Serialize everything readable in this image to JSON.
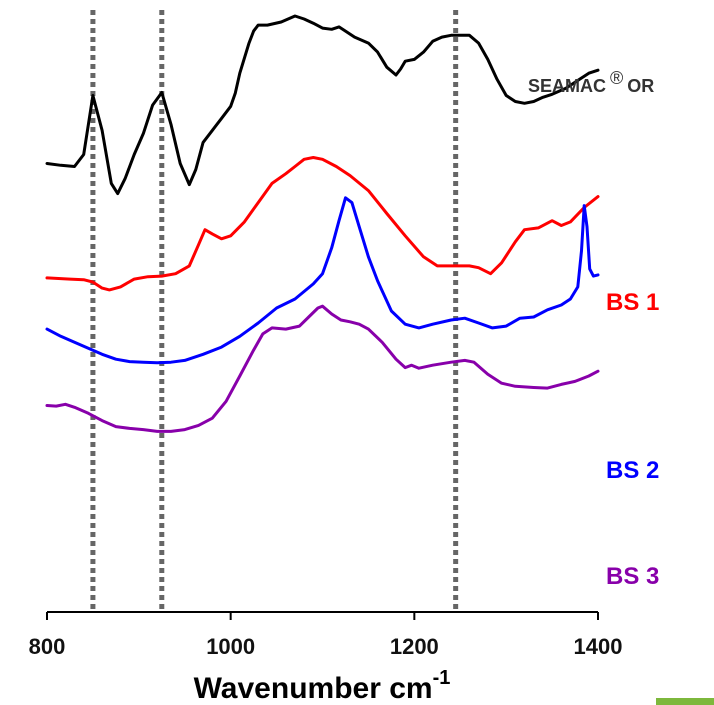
{
  "chart_data": {
    "type": "line",
    "title": "",
    "xlabel": "Wavenumber cm",
    "xlabel_superscript": "-1",
    "ylabel": "",
    "xlim": [
      800,
      1400
    ],
    "xticks": [
      800,
      1000,
      1200,
      1400
    ],
    "stacked_offsets": true,
    "reference_lines": {
      "style": "dotted",
      "color": "#666666",
      "x": [
        850,
        925,
        1245
      ]
    },
    "series": [
      {
        "name": "SEAMAC",
        "name_superscript": "®",
        "name_suffix": "OR",
        "color": "#000000",
        "label_color": "#333333",
        "points": [
          [
            800,
            0.745
          ],
          [
            815,
            0.742
          ],
          [
            830,
            0.74
          ],
          [
            840,
            0.76
          ],
          [
            850,
            0.858
          ],
          [
            860,
            0.8
          ],
          [
            870,
            0.712
          ],
          [
            877,
            0.695
          ],
          [
            885,
            0.72
          ],
          [
            895,
            0.76
          ],
          [
            905,
            0.795
          ],
          [
            915,
            0.842
          ],
          [
            925,
            0.863
          ],
          [
            935,
            0.81
          ],
          [
            945,
            0.745
          ],
          [
            955,
            0.71
          ],
          [
            962,
            0.735
          ],
          [
            970,
            0.78
          ],
          [
            980,
            0.8
          ],
          [
            990,
            0.82
          ],
          [
            1000,
            0.84
          ],
          [
            1005,
            0.862
          ],
          [
            1010,
            0.895
          ],
          [
            1020,
            0.945
          ],
          [
            1025,
            0.965
          ],
          [
            1030,
            0.975
          ],
          [
            1040,
            0.975
          ],
          [
            1055,
            0.98
          ],
          [
            1070,
            0.99
          ],
          [
            1080,
            0.985
          ],
          [
            1090,
            0.978
          ],
          [
            1100,
            0.97
          ],
          [
            1110,
            0.968
          ],
          [
            1118,
            0.972
          ],
          [
            1125,
            0.965
          ],
          [
            1135,
            0.955
          ],
          [
            1150,
            0.945
          ],
          [
            1160,
            0.93
          ],
          [
            1170,
            0.905
          ],
          [
            1180,
            0.892
          ],
          [
            1185,
            0.902
          ],
          [
            1190,
            0.915
          ],
          [
            1200,
            0.918
          ],
          [
            1210,
            0.93
          ],
          [
            1220,
            0.948
          ],
          [
            1230,
            0.955
          ],
          [
            1240,
            0.958
          ],
          [
            1250,
            0.958
          ],
          [
            1260,
            0.958
          ],
          [
            1270,
            0.945
          ],
          [
            1280,
            0.918
          ],
          [
            1290,
            0.885
          ],
          [
            1300,
            0.858
          ],
          [
            1310,
            0.848
          ],
          [
            1320,
            0.845
          ],
          [
            1330,
            0.848
          ],
          [
            1340,
            0.855
          ],
          [
            1350,
            0.86
          ],
          [
            1365,
            0.87
          ],
          [
            1380,
            0.885
          ],
          [
            1390,
            0.895
          ],
          [
            1400,
            0.9
          ]
        ]
      },
      {
        "name": "BS 1",
        "color": "#ff0000",
        "label_color": "#ff0000",
        "points": [
          [
            800,
            0.555
          ],
          [
            825,
            0.553
          ],
          [
            840,
            0.552
          ],
          [
            850,
            0.548
          ],
          [
            860,
            0.538
          ],
          [
            868,
            0.535
          ],
          [
            880,
            0.54
          ],
          [
            895,
            0.553
          ],
          [
            910,
            0.557
          ],
          [
            925,
            0.558
          ],
          [
            940,
            0.562
          ],
          [
            955,
            0.575
          ],
          [
            965,
            0.61
          ],
          [
            972,
            0.635
          ],
          [
            980,
            0.628
          ],
          [
            990,
            0.62
          ],
          [
            1000,
            0.625
          ],
          [
            1015,
            0.648
          ],
          [
            1030,
            0.68
          ],
          [
            1045,
            0.712
          ],
          [
            1060,
            0.728
          ],
          [
            1070,
            0.74
          ],
          [
            1080,
            0.752
          ],
          [
            1090,
            0.755
          ],
          [
            1100,
            0.752
          ],
          [
            1115,
            0.74
          ],
          [
            1130,
            0.725
          ],
          [
            1150,
            0.7
          ],
          [
            1170,
            0.662
          ],
          [
            1190,
            0.625
          ],
          [
            1210,
            0.59
          ],
          [
            1225,
            0.575
          ],
          [
            1240,
            0.575
          ],
          [
            1260,
            0.575
          ],
          [
            1270,
            0.572
          ],
          [
            1283,
            0.562
          ],
          [
            1295,
            0.58
          ],
          [
            1310,
            0.615
          ],
          [
            1320,
            0.635
          ],
          [
            1335,
            0.638
          ],
          [
            1350,
            0.65
          ],
          [
            1360,
            0.642
          ],
          [
            1370,
            0.648
          ],
          [
            1385,
            0.672
          ],
          [
            1400,
            0.69
          ]
        ]
      },
      {
        "name": "BS 2",
        "color": "#0000ff",
        "label_color": "#0000ff",
        "points": [
          [
            800,
            0.47
          ],
          [
            815,
            0.458
          ],
          [
            830,
            0.448
          ],
          [
            845,
            0.438
          ],
          [
            860,
            0.428
          ],
          [
            875,
            0.42
          ],
          [
            890,
            0.416
          ],
          [
            905,
            0.415
          ],
          [
            920,
            0.414
          ],
          [
            935,
            0.415
          ],
          [
            950,
            0.418
          ],
          [
            970,
            0.428
          ],
          [
            990,
            0.44
          ],
          [
            1010,
            0.458
          ],
          [
            1030,
            0.48
          ],
          [
            1050,
            0.505
          ],
          [
            1070,
            0.52
          ],
          [
            1090,
            0.545
          ],
          [
            1100,
            0.562
          ],
          [
            1110,
            0.605
          ],
          [
            1118,
            0.65
          ],
          [
            1125,
            0.688
          ],
          [
            1132,
            0.68
          ],
          [
            1140,
            0.64
          ],
          [
            1150,
            0.59
          ],
          [
            1160,
            0.55
          ],
          [
            1175,
            0.5
          ],
          [
            1190,
            0.478
          ],
          [
            1205,
            0.472
          ],
          [
            1220,
            0.478
          ],
          [
            1240,
            0.485
          ],
          [
            1255,
            0.488
          ],
          [
            1270,
            0.48
          ],
          [
            1285,
            0.472
          ],
          [
            1300,
            0.475
          ],
          [
            1315,
            0.488
          ],
          [
            1330,
            0.49
          ],
          [
            1345,
            0.502
          ],
          [
            1360,
            0.51
          ],
          [
            1370,
            0.52
          ],
          [
            1378,
            0.54
          ],
          [
            1382,
            0.6
          ],
          [
            1385,
            0.675
          ],
          [
            1388,
            0.64
          ],
          [
            1391,
            0.57
          ],
          [
            1395,
            0.558
          ],
          [
            1400,
            0.56
          ]
        ]
      },
      {
        "name": "BS 3",
        "color": "#8800aa",
        "label_color": "#8800aa",
        "points": [
          [
            800,
            0.343
          ],
          [
            810,
            0.342
          ],
          [
            820,
            0.345
          ],
          [
            830,
            0.34
          ],
          [
            845,
            0.33
          ],
          [
            860,
            0.318
          ],
          [
            875,
            0.308
          ],
          [
            890,
            0.305
          ],
          [
            905,
            0.303
          ],
          [
            920,
            0.3
          ],
          [
            935,
            0.3
          ],
          [
            950,
            0.303
          ],
          [
            965,
            0.31
          ],
          [
            980,
            0.322
          ],
          [
            995,
            0.35
          ],
          [
            1010,
            0.392
          ],
          [
            1025,
            0.435
          ],
          [
            1035,
            0.462
          ],
          [
            1045,
            0.472
          ],
          [
            1060,
            0.47
          ],
          [
            1075,
            0.475
          ],
          [
            1085,
            0.49
          ],
          [
            1095,
            0.505
          ],
          [
            1100,
            0.508
          ],
          [
            1110,
            0.495
          ],
          [
            1120,
            0.485
          ],
          [
            1130,
            0.482
          ],
          [
            1140,
            0.478
          ],
          [
            1150,
            0.47
          ],
          [
            1165,
            0.448
          ],
          [
            1180,
            0.42
          ],
          [
            1190,
            0.406
          ],
          [
            1197,
            0.41
          ],
          [
            1205,
            0.405
          ],
          [
            1220,
            0.41
          ],
          [
            1240,
            0.415
          ],
          [
            1255,
            0.418
          ],
          [
            1265,
            0.415
          ],
          [
            1280,
            0.395
          ],
          [
            1295,
            0.38
          ],
          [
            1310,
            0.375
          ],
          [
            1330,
            0.373
          ],
          [
            1345,
            0.372
          ],
          [
            1360,
            0.378
          ],
          [
            1375,
            0.383
          ],
          [
            1390,
            0.392
          ],
          [
            1400,
            0.4
          ]
        ]
      }
    ]
  },
  "accent": {
    "corner_bar_color": "#7db83c"
  }
}
